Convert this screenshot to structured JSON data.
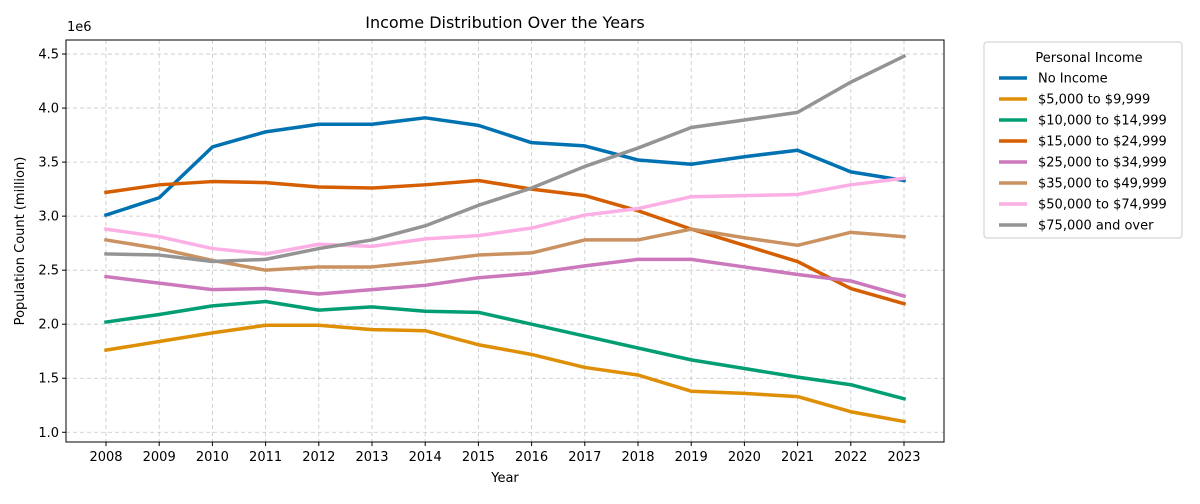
{
  "chart_data": {
    "type": "line",
    "title": "Income Distribution Over the Years",
    "xlabel": "Year",
    "ylabel": "Population Count (million)",
    "y_offset_label": "1e6",
    "x": [
      2008,
      2009,
      2010,
      2011,
      2012,
      2013,
      2014,
      2015,
      2016,
      2017,
      2018,
      2019,
      2020,
      2021,
      2022,
      2023
    ],
    "y_ticks": [
      "1.0",
      "1.5",
      "2.0",
      "2.5",
      "3.0",
      "3.5",
      "4.0",
      "4.5"
    ],
    "ylim": [
      0.91,
      4.63
    ],
    "grid": true,
    "legend_title": "Personal Income",
    "legend_position": "outside-right",
    "series": [
      {
        "name": "No Income",
        "color": "#0072b2",
        "values": [
          3.01,
          3.17,
          3.64,
          3.78,
          3.85,
          3.85,
          3.91,
          3.84,
          3.68,
          3.65,
          3.52,
          3.48,
          3.55,
          3.61,
          3.41,
          3.33
        ]
      },
      {
        "name": "$5,000 to $9,999",
        "color": "#de8f05",
        "values": [
          1.76,
          1.84,
          1.92,
          1.99,
          1.99,
          1.95,
          1.94,
          1.81,
          1.72,
          1.6,
          1.53,
          1.38,
          1.36,
          1.33,
          1.19,
          1.1
        ]
      },
      {
        "name": "$10,000 to $14,999",
        "color": "#029e73",
        "values": [
          2.02,
          2.09,
          2.17,
          2.21,
          2.13,
          2.16,
          2.12,
          2.11,
          2.0,
          1.89,
          1.78,
          1.67,
          1.59,
          1.51,
          1.44,
          1.31
        ]
      },
      {
        "name": "$15,000 to $24,999",
        "color": "#d55e00",
        "values": [
          3.22,
          3.29,
          3.32,
          3.31,
          3.27,
          3.26,
          3.29,
          3.33,
          3.25,
          3.19,
          3.05,
          2.88,
          2.73,
          2.58,
          2.33,
          2.19
        ]
      },
      {
        "name": "$25,000 to $34,999",
        "color": "#cc78bc",
        "values": [
          2.44,
          2.38,
          2.32,
          2.33,
          2.28,
          2.32,
          2.36,
          2.43,
          2.47,
          2.54,
          2.6,
          2.6,
          2.53,
          2.46,
          2.4,
          2.26
        ]
      },
      {
        "name": "$35,000 to $49,999",
        "color": "#ca9161",
        "values": [
          2.78,
          2.7,
          2.59,
          2.5,
          2.53,
          2.53,
          2.58,
          2.64,
          2.66,
          2.78,
          2.78,
          2.88,
          2.8,
          2.73,
          2.85,
          2.81
        ]
      },
      {
        "name": "$50,000 to $74,999",
        "color": "#fbafe4",
        "values": [
          2.88,
          2.81,
          2.7,
          2.65,
          2.74,
          2.72,
          2.79,
          2.82,
          2.89,
          3.01,
          3.07,
          3.18,
          3.19,
          3.2,
          3.29,
          3.35
        ]
      },
      {
        "name": "$75,000 and over",
        "color": "#949494",
        "values": [
          2.65,
          2.64,
          2.58,
          2.6,
          2.7,
          2.78,
          2.91,
          3.1,
          3.26,
          3.46,
          3.63,
          3.82,
          3.89,
          3.96,
          4.24,
          4.48
        ]
      }
    ]
  }
}
